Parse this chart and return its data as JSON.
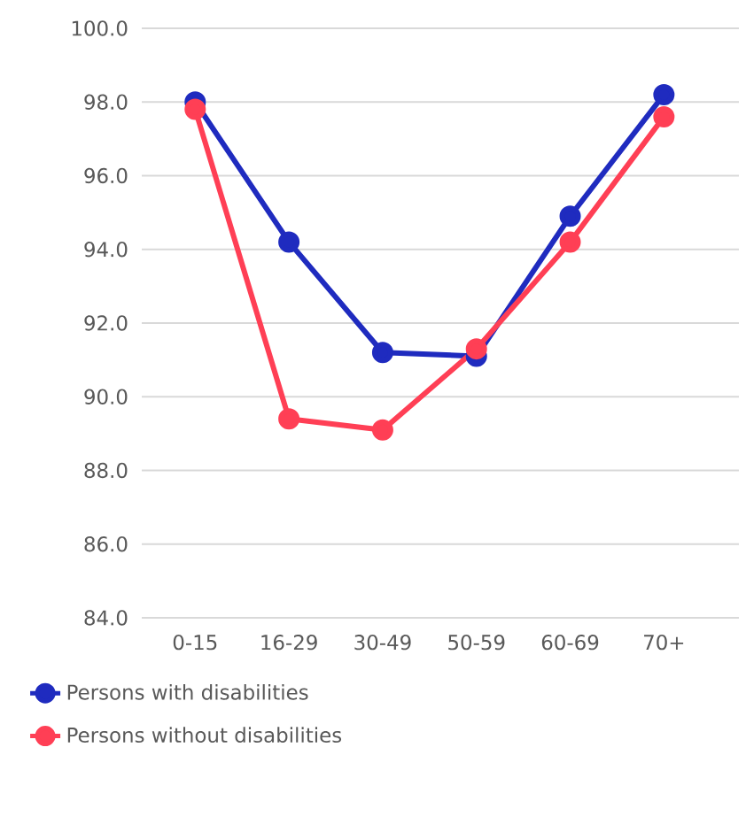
{
  "chart_data": {
    "type": "line",
    "categories": [
      "0-15",
      "16-29",
      "30-49",
      "50-59",
      "60-69",
      "70+"
    ],
    "series": [
      {
        "name": "Persons with disabilities",
        "color": "#1f2bbf",
        "values": [
          98.0,
          94.2,
          91.2,
          91.1,
          94.9,
          98.2
        ]
      },
      {
        "name": "Persons without disabilities",
        "color": "#ff3f55",
        "values": [
          97.8,
          89.4,
          89.1,
          91.3,
          94.2,
          97.6
        ]
      }
    ],
    "ylim": [
      84,
      100
    ],
    "yticks": [
      {
        "value": 84,
        "label": "84.0"
      },
      {
        "value": 86,
        "label": "86.0"
      },
      {
        "value": 88,
        "label": "88.0"
      },
      {
        "value": 90,
        "label": "90.0"
      },
      {
        "value": 92,
        "label": "92.0"
      },
      {
        "value": 94,
        "label": "94.0"
      },
      {
        "value": 96,
        "label": "96.0"
      },
      {
        "value": 98,
        "label": "98.0"
      },
      {
        "value": 100,
        "label": "100.0"
      }
    ],
    "grid": "y",
    "legend": "bottom",
    "marker": "circle",
    "line_style": "solid"
  }
}
